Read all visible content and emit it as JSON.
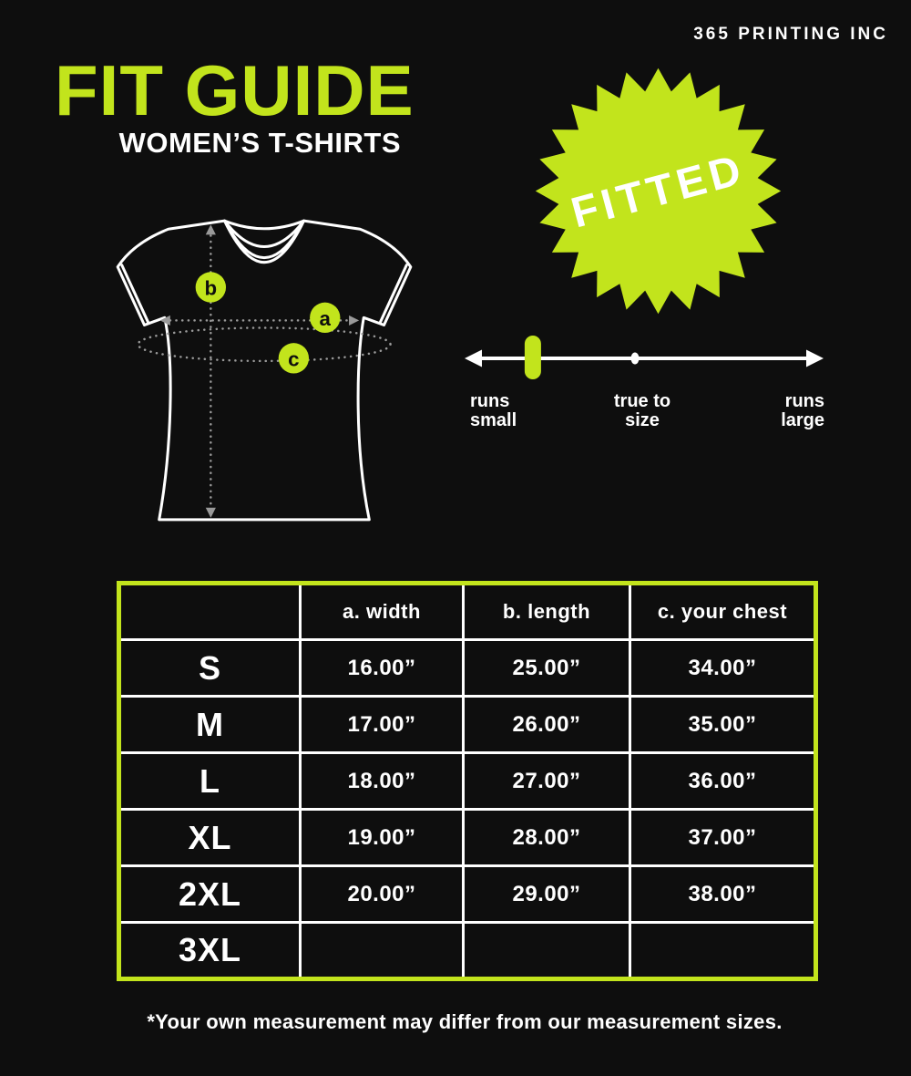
{
  "brand": "365 PRINTING INC",
  "title": "FIT GUIDE",
  "subtitle": "WOMEN’S T-SHIRTS",
  "badge": {
    "label": "FITTED",
    "spikes": 24
  },
  "diagram": {
    "marker_a": "a",
    "marker_b": "b",
    "marker_c": "c"
  },
  "scale": {
    "marker_fraction": 0.19,
    "left_label": {
      "line1": "runs",
      "line2": "small"
    },
    "center_label": {
      "line1": "true to",
      "line2": "size"
    },
    "right_label": {
      "line1": "runs",
      "line2": "large"
    }
  },
  "table": {
    "headers": [
      "",
      "a. width",
      "b. length",
      "c. your chest"
    ],
    "rows": [
      {
        "size": "S",
        "width": "16.00”",
        "length": "25.00”",
        "chest": "34.00”"
      },
      {
        "size": "M",
        "width": "17.00”",
        "length": "26.00”",
        "chest": "35.00”"
      },
      {
        "size": "L",
        "width": "18.00”",
        "length": "27.00”",
        "chest": "36.00”"
      },
      {
        "size": "XL",
        "width": "19.00”",
        "length": "28.00”",
        "chest": "37.00”"
      },
      {
        "size": "2XL",
        "width": "20.00”",
        "length": "29.00”",
        "chest": "38.00”"
      },
      {
        "size": "3XL",
        "width": "",
        "length": "",
        "chest": ""
      }
    ]
  },
  "footnote": "*Your own measurement may differ from our measurement sizes.",
  "colors": {
    "accent": "#c2e41c",
    "background": "#0e0e0e",
    "ink": "#ffffff",
    "dimension_gray": "#999999"
  }
}
